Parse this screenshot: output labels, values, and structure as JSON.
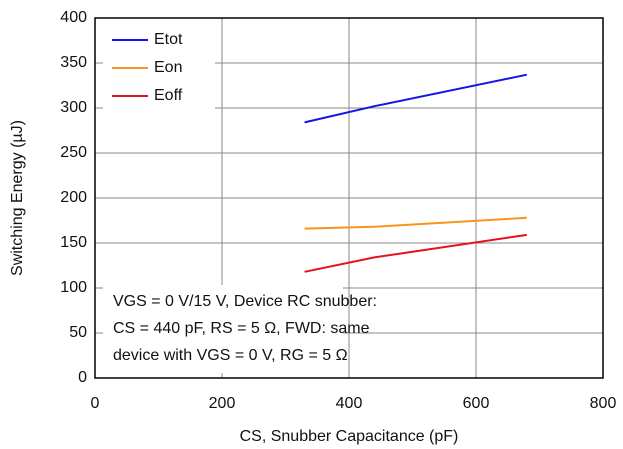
{
  "chart_data": {
    "type": "line",
    "x": [
      330,
      440,
      680
    ],
    "series": [
      {
        "name": "Etot",
        "color": "#1414e6",
        "values": [
          284,
          302,
          337
        ]
      },
      {
        "name": "Eon",
        "color": "#f7941d",
        "values": [
          166,
          168,
          178
        ]
      },
      {
        "name": "Eoff",
        "color": "#e3121c",
        "values": [
          118,
          134,
          159
        ]
      }
    ],
    "xlabel": "CS, Snubber Capacitance (pF)",
    "ylabel": "Switching Energy (µJ)",
    "xlim": [
      0,
      800
    ],
    "xticks": [
      0,
      200,
      400,
      600,
      800
    ],
    "ylim": [
      0,
      400
    ],
    "yticks": [
      0,
      50,
      100,
      150,
      200,
      250,
      300,
      350,
      400
    ],
    "grid": true,
    "legend": "upper left",
    "annotation": [
      "VGS = 0 V/15 V, Device RC snubber:",
      "CS = 440 pF, RS = 5 Ω, FWD: same",
      "device with VGS = 0 V, RG = 5 Ω"
    ]
  }
}
